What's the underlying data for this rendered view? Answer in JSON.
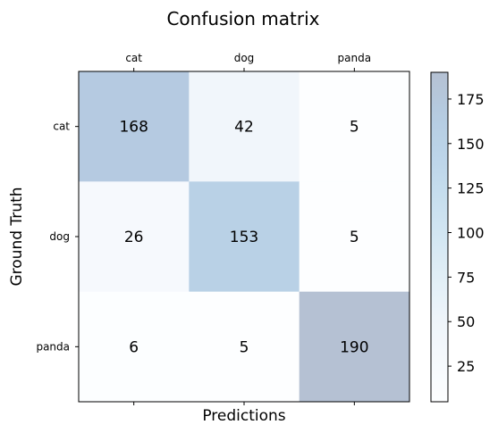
{
  "chart_data": {
    "type": "heatmap",
    "title": "Confusion matrix",
    "xlabel": "Predictions",
    "ylabel": "Ground Truth",
    "x_categories": [
      "cat",
      "dog",
      "panda"
    ],
    "y_categories": [
      "cat",
      "dog",
      "panda"
    ],
    "x_tick_position": "top",
    "values": [
      [
        168,
        42,
        5
      ],
      [
        26,
        153,
        5
      ],
      [
        6,
        5,
        190
      ]
    ],
    "colorscale": "Blues",
    "cell_alpha": 0.3,
    "colorbar": {
      "range": [
        5,
        190
      ],
      "ticks": [
        25,
        50,
        75,
        100,
        125,
        150,
        175
      ],
      "tick_labels": [
        "25",
        "50",
        "75",
        "100",
        "125",
        "150",
        "175"
      ]
    },
    "grid": false,
    "colors": {
      "blues_low": "#f7fbff",
      "blues_mid": "#6baed6",
      "blues_high": "#08306b",
      "text": "#000000"
    }
  }
}
